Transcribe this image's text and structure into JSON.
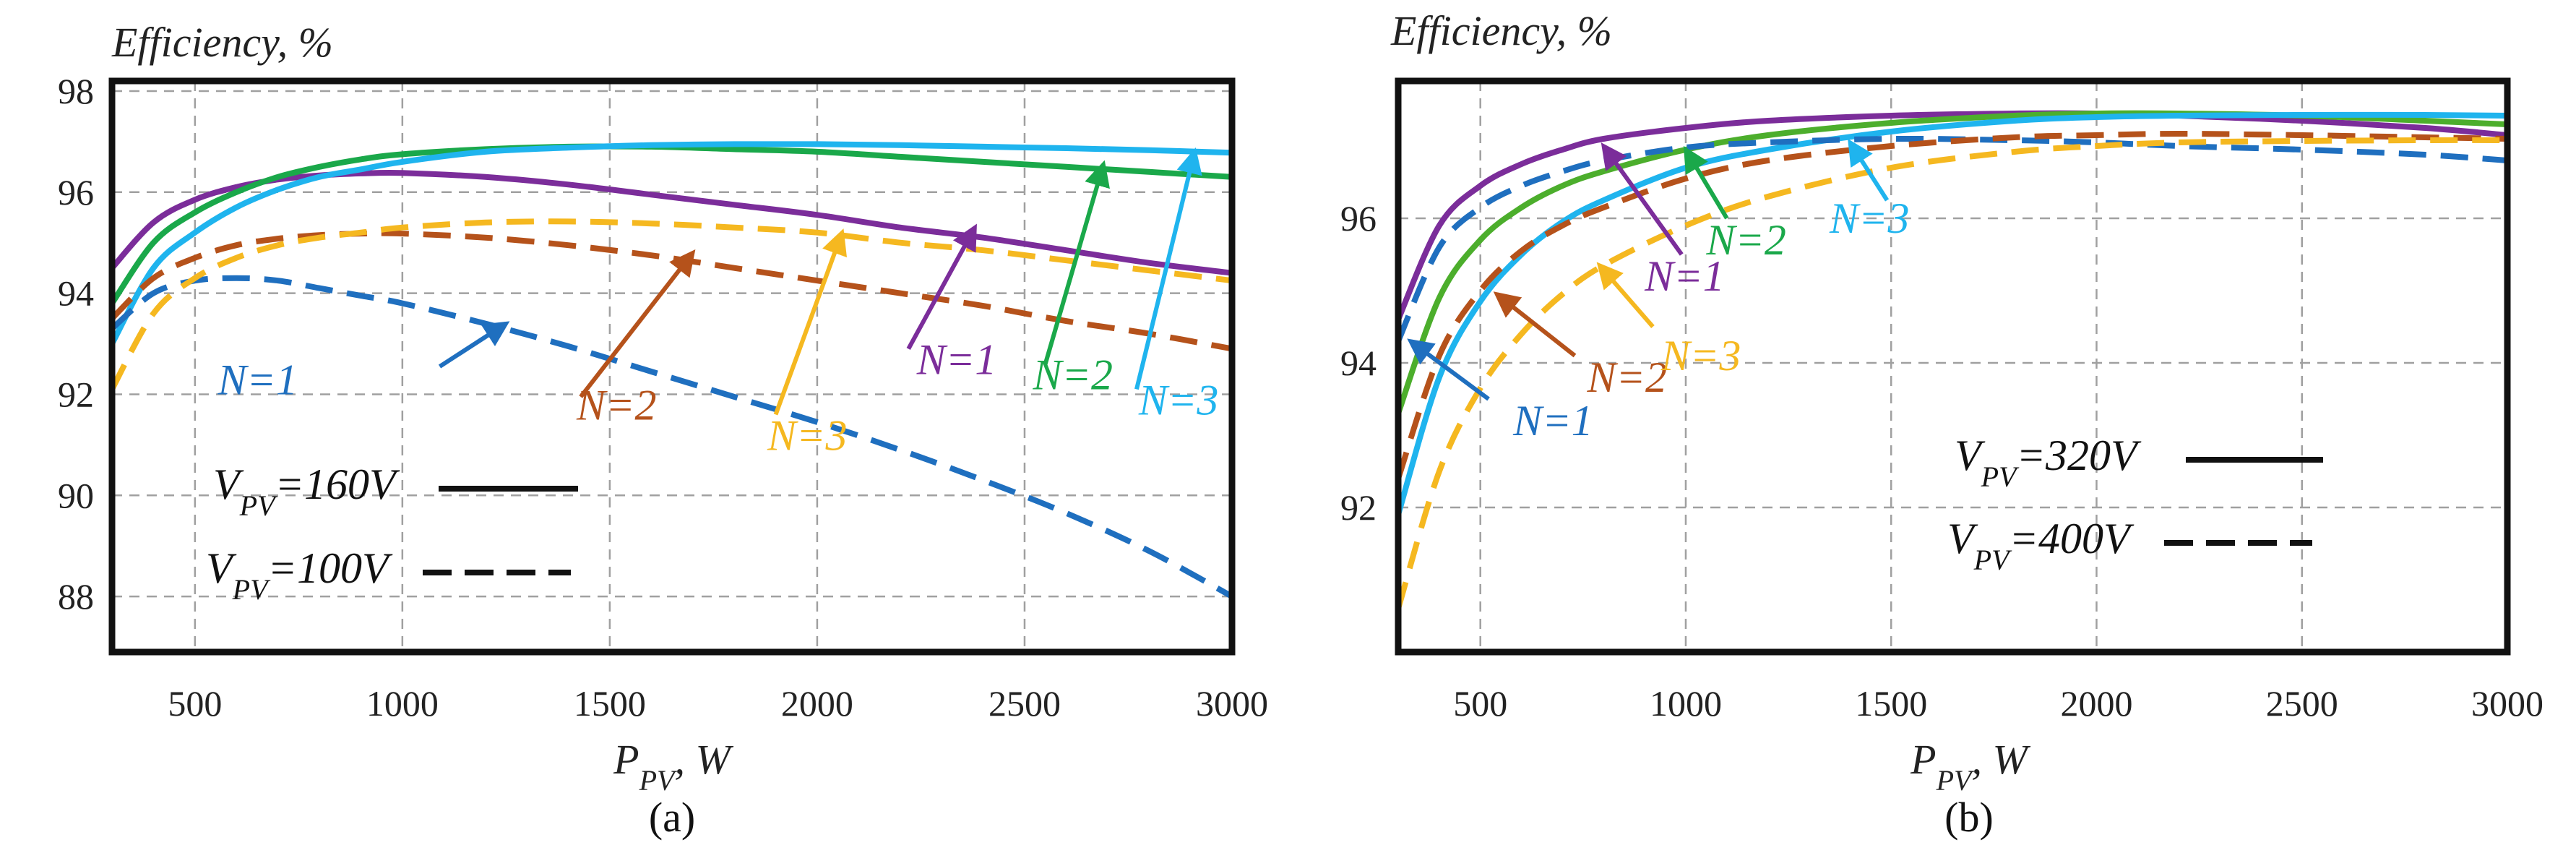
{
  "chart_data": [
    {
      "type": "line",
      "panel_label": "(a)",
      "ylabel": "Efficiency, %",
      "xlabel_main": "P",
      "xlabel_sub": "PV",
      "xlabel_unit": ", W",
      "xlim": [
        300,
        3000
      ],
      "ylim": [
        86.9,
        98.2
      ],
      "x_ticks": [
        500,
        1000,
        1500,
        2000,
        2500,
        3000
      ],
      "x_tick_labels": [
        "500",
        "1000",
        "1500",
        "2000",
        "2500",
        "3000"
      ],
      "y_ticks": [
        88,
        90,
        92,
        94,
        96,
        98
      ],
      "y_tick_labels": [
        "88",
        "90",
        "92",
        "94",
        "96",
        "98"
      ],
      "grid": true,
      "series": [
        {
          "name": "N=1, VPV=160V",
          "color": "#7b2d9a",
          "dash": "solid",
          "x": [
            300,
            400,
            500,
            600,
            700,
            800,
            900,
            1000,
            1200,
            1400,
            1600,
            1800,
            2000,
            2200,
            2400,
            2600,
            2800,
            3000
          ],
          "y": [
            94.5,
            95.4,
            95.85,
            96.1,
            96.25,
            96.33,
            96.37,
            96.38,
            96.3,
            96.15,
            95.95,
            95.75,
            95.55,
            95.3,
            95.1,
            94.85,
            94.6,
            94.4
          ]
        },
        {
          "name": "N=2, VPV=160V",
          "color": "#1aa84a",
          "dash": "solid",
          "x": [
            300,
            400,
            500,
            600,
            700,
            800,
            900,
            1000,
            1200,
            1400,
            1600,
            1800,
            2000,
            2200,
            2400,
            2600,
            2800,
            3000
          ],
          "y": [
            93.8,
            95.0,
            95.6,
            96.0,
            96.3,
            96.5,
            96.65,
            96.75,
            96.85,
            96.9,
            96.9,
            96.85,
            96.8,
            96.7,
            96.6,
            96.5,
            96.4,
            96.3
          ]
        },
        {
          "name": "N=3, VPV=160V",
          "color": "#1fb4ee",
          "dash": "solid",
          "x": [
            300,
            400,
            500,
            600,
            700,
            800,
            900,
            1000,
            1200,
            1400,
            1600,
            1800,
            2000,
            2200,
            2400,
            2600,
            2800,
            3000
          ],
          "y": [
            93.0,
            94.5,
            95.2,
            95.7,
            96.05,
            96.3,
            96.45,
            96.6,
            96.8,
            96.88,
            96.93,
            96.95,
            96.95,
            96.93,
            96.9,
            96.87,
            96.83,
            96.78
          ]
        },
        {
          "name": "N=1, VPV=100V",
          "color": "#1f6fbf",
          "dash": "dashed",
          "x": [
            300,
            400,
            500,
            600,
            700,
            800,
            900,
            1000,
            1200,
            1400,
            1600,
            1800,
            2000,
            2200,
            2400,
            2600,
            2800,
            3000
          ],
          "y": [
            93.3,
            94.0,
            94.25,
            94.3,
            94.25,
            94.1,
            93.95,
            93.8,
            93.4,
            92.95,
            92.45,
            91.95,
            91.45,
            90.9,
            90.3,
            89.65,
            88.9,
            88.0
          ]
        },
        {
          "name": "N=2, VPV=100V",
          "color": "#b5521b",
          "dash": "dashed",
          "x": [
            300,
            400,
            500,
            600,
            700,
            800,
            900,
            1000,
            1200,
            1400,
            1600,
            1800,
            2000,
            2200,
            2400,
            2600,
            2800,
            3000
          ],
          "y": [
            93.5,
            94.3,
            94.7,
            94.95,
            95.08,
            95.15,
            95.18,
            95.18,
            95.1,
            94.95,
            94.75,
            94.5,
            94.25,
            94.0,
            93.75,
            93.45,
            93.2,
            92.9
          ]
        },
        {
          "name": "N=3, VPV=100V",
          "color": "#f5b820",
          "dash": "dashed",
          "x": [
            300,
            400,
            500,
            600,
            700,
            800,
            900,
            1000,
            1200,
            1400,
            1600,
            1800,
            2000,
            2200,
            2400,
            2600,
            2800,
            3000
          ],
          "y": [
            92.1,
            93.6,
            94.3,
            94.7,
            94.95,
            95.1,
            95.2,
            95.3,
            95.4,
            95.42,
            95.38,
            95.3,
            95.2,
            95.0,
            94.85,
            94.65,
            94.45,
            94.25
          ]
        }
      ],
      "annotations": [
        {
          "text": "N=1",
          "color": "#1f6fbf",
          "label_at": [
            555,
            92.0
          ],
          "arrow_from": [
            1090,
            92.55
          ],
          "arrow_to": [
            1250,
            93.4
          ]
        },
        {
          "text": "N=2",
          "color": "#b5521b",
          "label_at": [
            1420,
            91.5
          ],
          "arrow_from": [
            1430,
            91.95
          ],
          "arrow_to": [
            1700,
            94.8
          ]
        },
        {
          "text": "N=3",
          "color": "#f5b820",
          "label_at": [
            1880,
            90.9
          ],
          "arrow_from": [
            1900,
            91.6
          ],
          "arrow_to": [
            2060,
            95.2
          ]
        },
        {
          "text": "N=1",
          "color": "#7b2d9a",
          "label_at": [
            2240,
            92.4
          ],
          "arrow_from": [
            2220,
            92.9
          ],
          "arrow_to": [
            2380,
            95.3
          ]
        },
        {
          "text": "N=2",
          "color": "#1aa84a",
          "label_at": [
            2520,
            92.1
          ],
          "arrow_from": [
            2550,
            92.6
          ],
          "arrow_to": [
            2690,
            96.55
          ]
        },
        {
          "text": "N=3",
          "color": "#1fb4ee",
          "label_at": [
            2775,
            91.6
          ],
          "arrow_from": [
            2770,
            92.1
          ],
          "arrow_to": [
            2910,
            96.8
          ]
        }
      ],
      "legend": [
        {
          "main": "V",
          "sub": "PV",
          "rest": "=160V",
          "dash": "solid"
        },
        {
          "main": "V",
          "sub": "PV",
          "rest": "=100V",
          "dash": "dashed"
        }
      ]
    },
    {
      "type": "line",
      "panel_label": "(b)",
      "ylabel": "Efficiency, %",
      "xlabel_main": "P",
      "xlabel_sub": "PV",
      "xlabel_unit": ", W",
      "xlim": [
        300,
        3000
      ],
      "ylim": [
        90.0,
        97.9
      ],
      "x_ticks": [
        500,
        1000,
        1500,
        2000,
        2500,
        3000
      ],
      "x_tick_labels": [
        "500",
        "1000",
        "1500",
        "2000",
        "2500",
        "3000"
      ],
      "y_ticks": [
        92,
        94,
        96
      ],
      "y_tick_labels": [
        "92",
        "94",
        "96"
      ],
      "grid": true,
      "series": [
        {
          "name": "N=1, VPV=320V",
          "color": "#7b2d9a",
          "dash": "solid",
          "x": [
            300,
            400,
            500,
            600,
            700,
            800,
            1000,
            1200,
            1500,
            1800,
            2000,
            2200,
            2500,
            2800,
            3000
          ],
          "y": [
            94.6,
            95.9,
            96.45,
            96.75,
            96.95,
            97.1,
            97.25,
            97.35,
            97.42,
            97.45,
            97.45,
            97.42,
            97.35,
            97.25,
            97.15
          ]
        },
        {
          "name": "N=2, VPV=320V",
          "color": "#4cae2c",
          "dash": "solid",
          "x": [
            300,
            400,
            500,
            600,
            700,
            800,
            1000,
            1200,
            1500,
            1800,
            2000,
            2200,
            2500,
            2800,
            3000
          ],
          "y": [
            93.3,
            94.9,
            95.7,
            96.15,
            96.45,
            96.65,
            96.95,
            97.15,
            97.32,
            97.42,
            97.45,
            97.45,
            97.42,
            97.35,
            97.3
          ]
        },
        {
          "name": "N=3, VPV=320V",
          "color": "#1fb4ee",
          "dash": "solid",
          "x": [
            300,
            400,
            500,
            600,
            700,
            800,
            1000,
            1200,
            1500,
            1800,
            2000,
            2200,
            2500,
            2800,
            3000
          ],
          "y": [
            91.9,
            93.8,
            94.85,
            95.5,
            95.95,
            96.25,
            96.7,
            96.95,
            97.2,
            97.35,
            97.4,
            97.42,
            97.43,
            97.43,
            97.42
          ]
        },
        {
          "name": "N=1, VPV=400V",
          "color": "#1f6fbf",
          "dash": "dashed",
          "x": [
            300,
            400,
            500,
            600,
            700,
            800,
            1000,
            1200,
            1500,
            1800,
            2000,
            2200,
            2500,
            2800,
            3000
          ],
          "y": [
            94.3,
            95.6,
            96.15,
            96.45,
            96.65,
            96.8,
            96.98,
            97.05,
            97.1,
            97.08,
            97.05,
            97.0,
            96.95,
            96.88,
            96.8
          ]
        },
        {
          "name": "N=2, VPV=400V",
          "color": "#b5521b",
          "dash": "dashed",
          "x": [
            300,
            400,
            500,
            600,
            700,
            800,
            1000,
            1200,
            1500,
            1800,
            2000,
            2200,
            2500,
            2800,
            3000
          ],
          "y": [
            92.4,
            94.1,
            95.0,
            95.55,
            95.9,
            96.15,
            96.55,
            96.8,
            97.0,
            97.12,
            97.15,
            97.17,
            97.15,
            97.12,
            97.1
          ]
        },
        {
          "name": "N=3, VPV=400V",
          "color": "#f5b820",
          "dash": "dashed",
          "x": [
            300,
            400,
            500,
            600,
            700,
            800,
            1000,
            1200,
            1500,
            1800,
            2000,
            2200,
            2500,
            2800,
            3000
          ],
          "y": [
            90.6,
            92.5,
            93.65,
            94.4,
            94.95,
            95.35,
            95.9,
            96.3,
            96.7,
            96.92,
            97.0,
            97.05,
            97.07,
            97.08,
            97.08
          ]
        }
      ],
      "annotations": [
        {
          "text": "N=1",
          "color": "#1f6fbf",
          "label_at": [
            580,
            93.0
          ],
          "arrow_from": [
            520,
            93.5
          ],
          "arrow_to": [
            330,
            94.3
          ]
        },
        {
          "text": "N=2",
          "color": "#b5521b",
          "label_at": [
            760,
            93.6
          ],
          "arrow_from": [
            730,
            94.1
          ],
          "arrow_to": [
            540,
            94.95
          ]
        },
        {
          "text": "N=3",
          "color": "#f5b820",
          "label_at": [
            940,
            93.9
          ],
          "arrow_from": [
            920,
            94.5
          ],
          "arrow_to": [
            790,
            95.35
          ]
        },
        {
          "text": "N=1",
          "color": "#7b2d9a",
          "label_at": [
            900,
            95.0
          ],
          "arrow_from": [
            990,
            95.5
          ],
          "arrow_to": [
            800,
            97.0
          ]
        },
        {
          "text": "N=2",
          "color": "#1aa84a",
          "label_at": [
            1050,
            95.5
          ],
          "arrow_from": [
            1100,
            96.0
          ],
          "arrow_to": [
            1000,
            96.95
          ]
        },
        {
          "text": "N=3",
          "color": "#1fb4ee",
          "label_at": [
            1350,
            95.8
          ],
          "arrow_from": [
            1490,
            96.25
          ],
          "arrow_to": [
            1400,
            97.05
          ]
        }
      ],
      "legend": [
        {
          "main": "V",
          "sub": "PV",
          "rest": "=320V",
          "dash": "solid"
        },
        {
          "main": "V",
          "sub": "PV",
          "rest": "=400V",
          "dash": "dashed"
        }
      ]
    }
  ]
}
